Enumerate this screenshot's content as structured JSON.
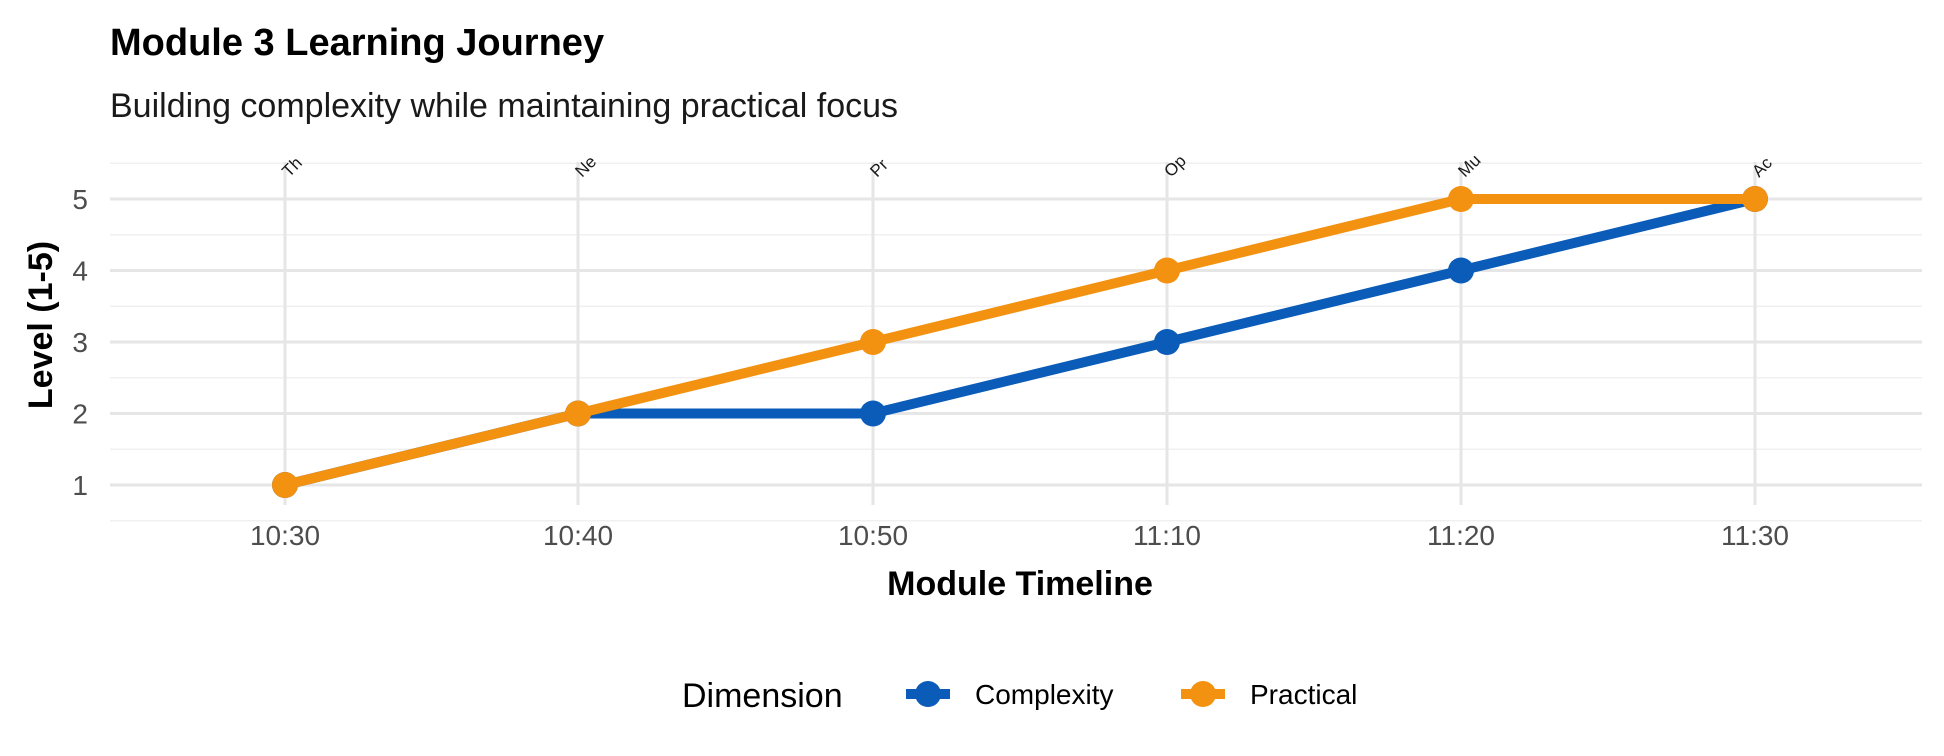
{
  "chart_data": {
    "type": "line",
    "title": "Module 3 Learning Journey",
    "subtitle": "Building complexity while maintaining practical focus",
    "xlabel": "Module Timeline",
    "ylabel": "Level (1-5)",
    "categories": [
      "10:30",
      "10:40",
      "10:50",
      "11:10",
      "11:20",
      "11:30"
    ],
    "point_labels": [
      "Th",
      "Ne",
      "Pr",
      "Op",
      "Mu",
      "Ac"
    ],
    "ylim": [
      0.6,
      5.5
    ],
    "yticks": [
      1,
      2,
      3,
      4,
      5
    ],
    "grid": true,
    "legend": {
      "title": "Dimension",
      "position": "bottom"
    },
    "series": [
      {
        "name": "Complexity",
        "color": "#0a5cb8",
        "values": [
          1,
          2,
          2,
          3,
          4,
          5
        ]
      },
      {
        "name": "Practical",
        "color": "#f39110",
        "values": [
          1,
          2,
          3,
          4,
          5,
          5
        ]
      }
    ]
  }
}
